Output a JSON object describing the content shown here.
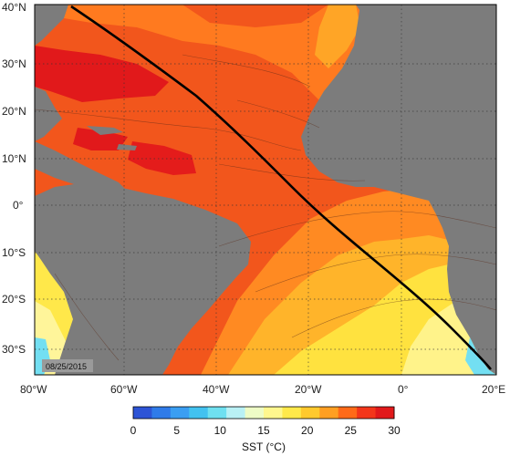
{
  "map": {
    "date_stamp": "08/25/2015",
    "lat_labels": [
      "40°N",
      "30°N",
      "20°N",
      "10°N",
      "0°",
      "10°S",
      "20°S",
      "30°S"
    ],
    "lon_labels": [
      "80°W",
      "60°W",
      "40°W",
      "20°W",
      "0°",
      "20°E"
    ],
    "colorbar": {
      "title": "SST (°C)",
      "tick_labels": [
        "0",
        "5",
        "10",
        "15",
        "20",
        "25",
        "30"
      ],
      "colors": [
        "#2d54d6",
        "#2f7be9",
        "#3a9ef2",
        "#42c2f0",
        "#6fe0f0",
        "#b9f1f5",
        "#eefcc6",
        "#fff78e",
        "#ffe94a",
        "#ffc92d",
        "#ff9f22",
        "#ff6a18",
        "#f3361a",
        "#e1191b"
      ]
    },
    "colors": {
      "land": "#7c7c7c",
      "track": "#000000"
    },
    "track_label": ""
  }
}
